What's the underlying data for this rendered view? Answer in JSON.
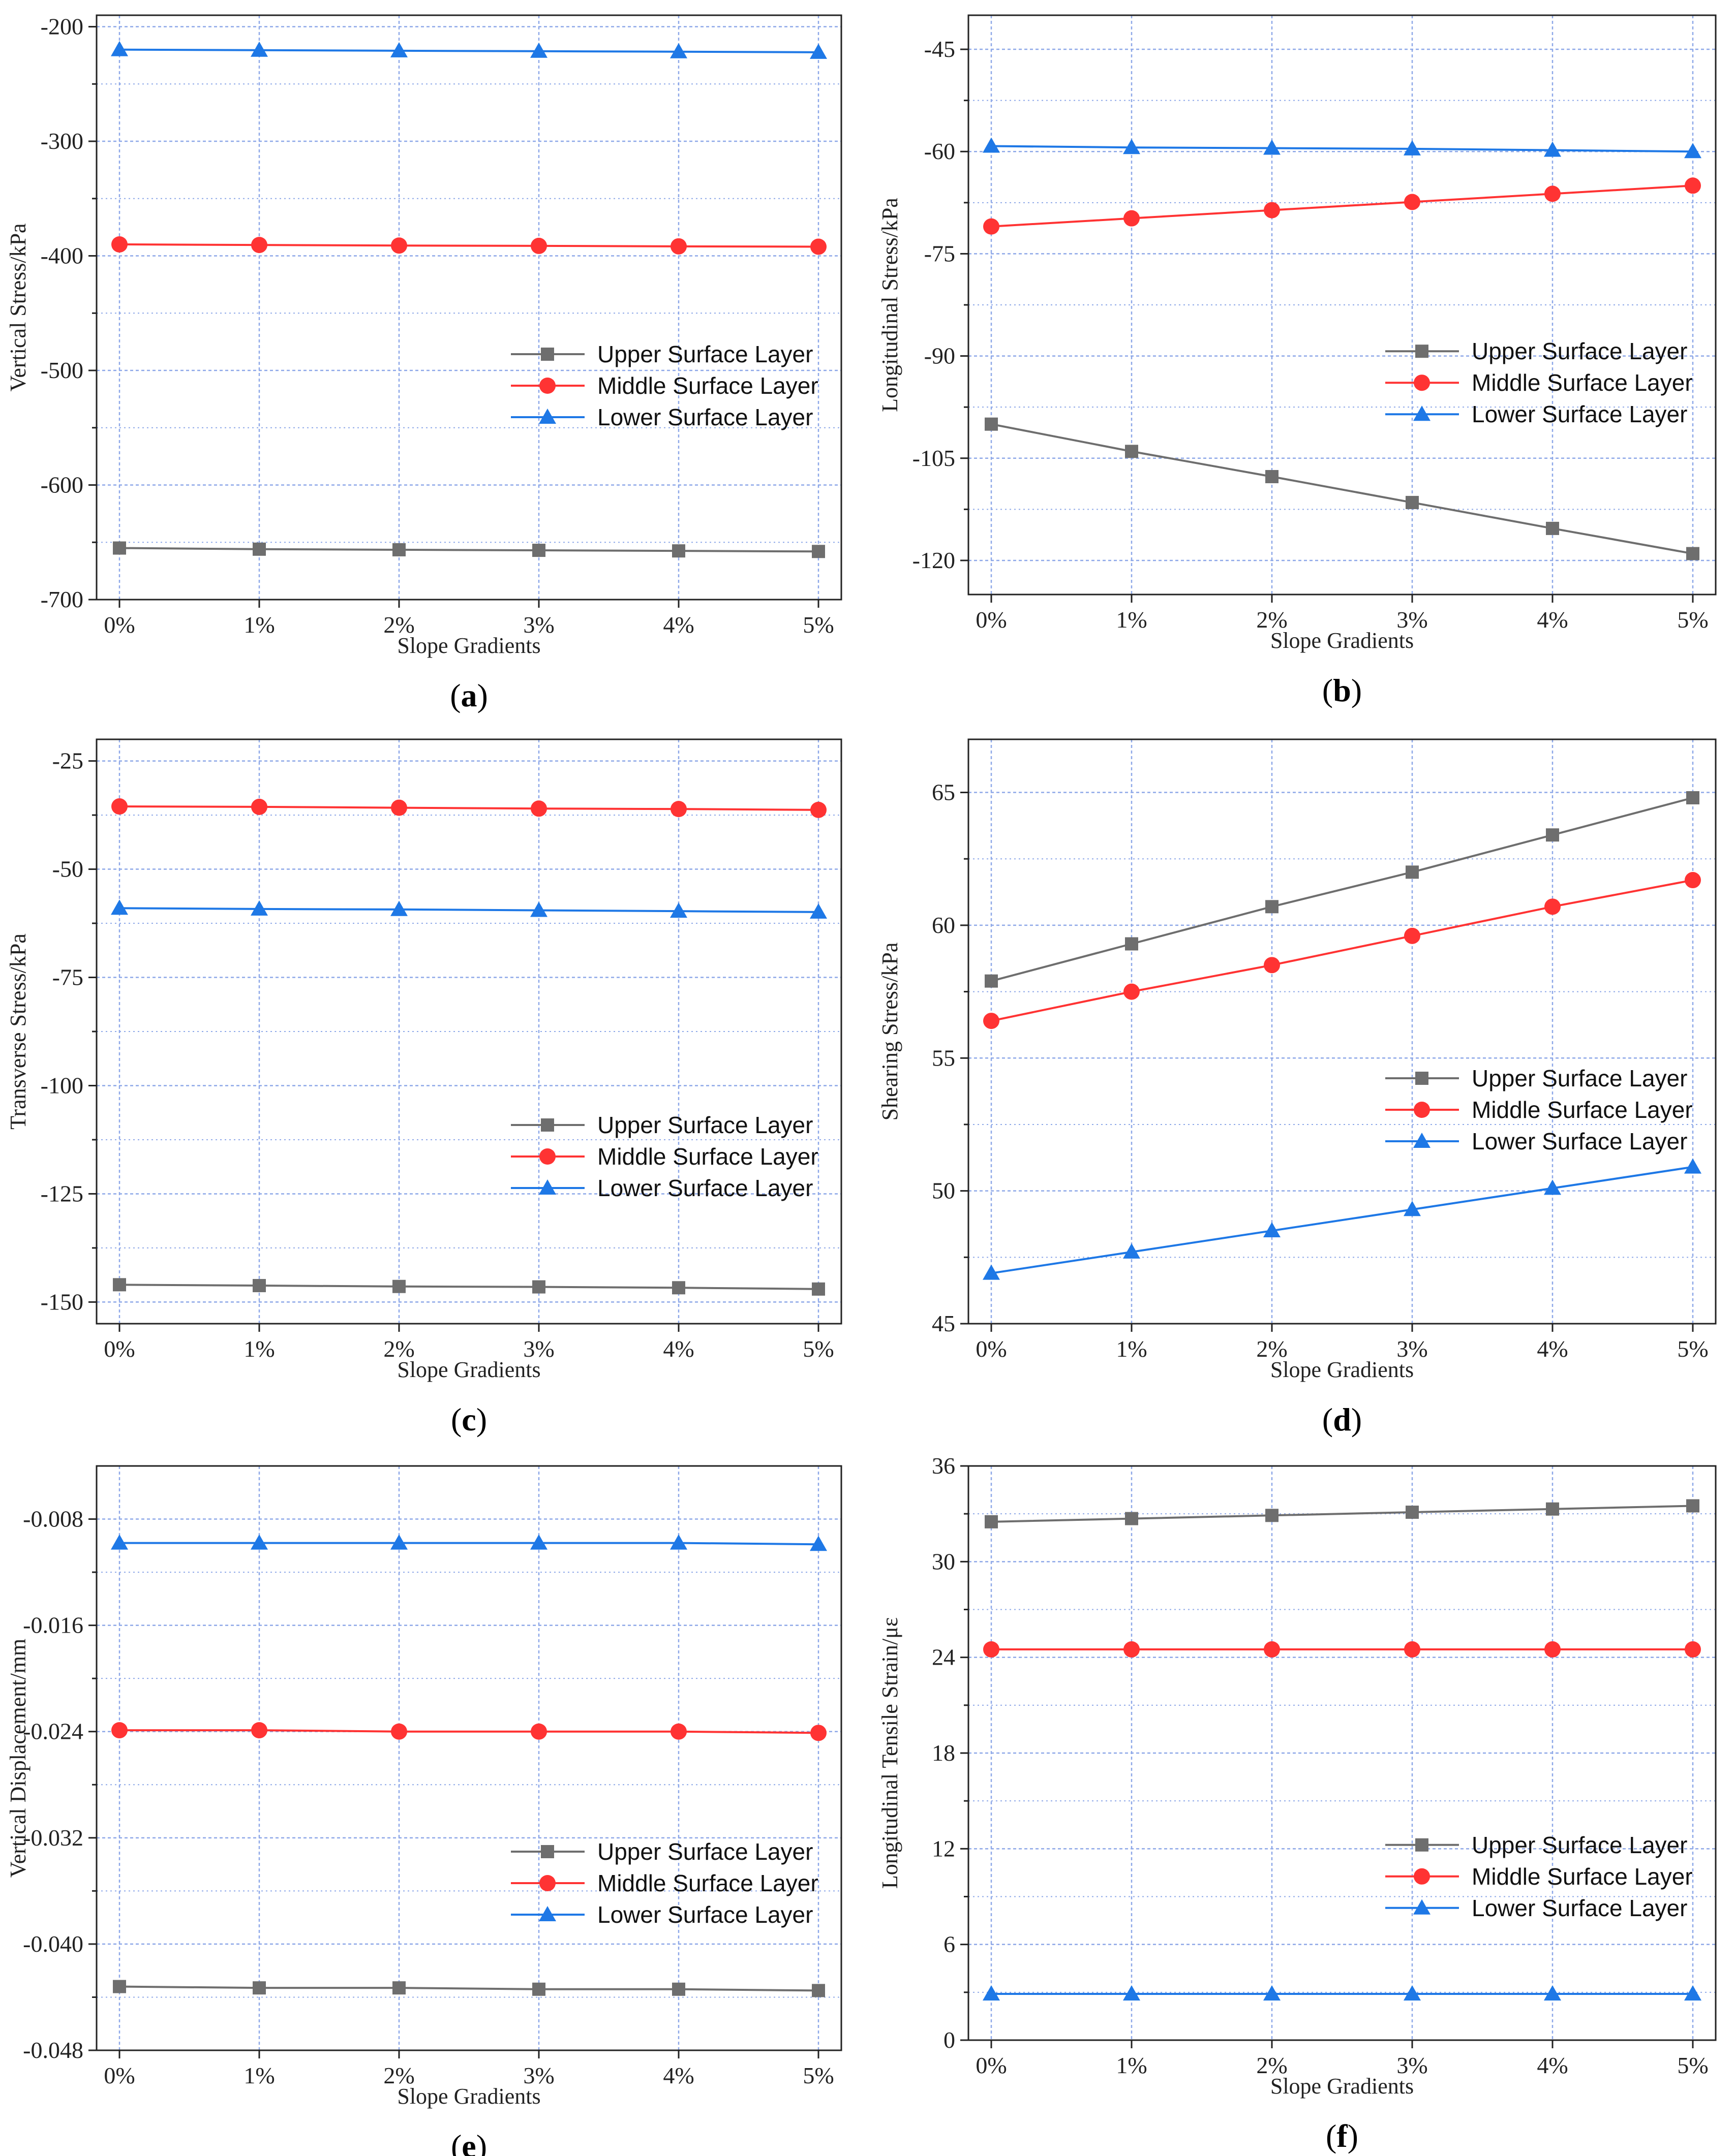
{
  "colors": {
    "upper": "#6e6e6e",
    "middle": "#ff3333",
    "lower": "#1e78e6",
    "grid": "#8ea8e8"
  },
  "chart_data": [
    {
      "panel": "a",
      "type": "line",
      "categories": [
        "0%",
        "1%",
        "2%",
        "3%",
        "4%",
        "5%"
      ],
      "xlabel": "Slope Gradients",
      "ylabel": "Vertical Stress/kPa",
      "ylim": [
        -700,
        -190
      ],
      "yticks": [
        -700,
        -600,
        -500,
        -400,
        -300,
        -200
      ],
      "ytick_labels": [
        "-700",
        "-600",
        "-500",
        "-400",
        "-300",
        "-200"
      ],
      "legend": {
        "position": "right-middle"
      },
      "caption_letter": "a",
      "series": [
        {
          "name": "Upper  Surface Layer",
          "key": "upper",
          "marker": "square",
          "values": [
            -655,
            -656,
            -656.5,
            -657,
            -657.5,
            -658
          ]
        },
        {
          "name": "Middle Surface Layer",
          "key": "middle",
          "marker": "circle",
          "values": [
            -390,
            -390.5,
            -391,
            -391.3,
            -391.7,
            -392
          ]
        },
        {
          "name": "Lower  Surface Layer",
          "key": "lower",
          "marker": "triangle",
          "values": [
            -220,
            -220.5,
            -221,
            -221.4,
            -221.8,
            -222.3
          ]
        }
      ]
    },
    {
      "panel": "b",
      "type": "line",
      "categories": [
        "0%",
        "1%",
        "2%",
        "3%",
        "4%",
        "5%"
      ],
      "xlabel": "Slope Gradients",
      "ylabel": "Longitudinal Stress/kPa",
      "ylim": [
        -125,
        -40
      ],
      "yticks": [
        -120,
        -105,
        -90,
        -75,
        -60,
        -45
      ],
      "ytick_labels": [
        "-120",
        "-105",
        "-90",
        "-75",
        "-60",
        "-45"
      ],
      "legend": {
        "position": "right-middle"
      },
      "caption_letter": "b",
      "series": [
        {
          "name": "Upper  Surface Layer",
          "key": "upper",
          "marker": "square",
          "values": [
            -100,
            -104,
            -107.7,
            -111.5,
            -115.3,
            -119
          ]
        },
        {
          "name": "Middle Surface Layer",
          "key": "middle",
          "marker": "circle",
          "values": [
            -71,
            -69.8,
            -68.6,
            -67.4,
            -66.2,
            -65
          ]
        },
        {
          "name": "Lower  Surface Layer",
          "key": "lower",
          "marker": "triangle",
          "values": [
            -59.2,
            -59.4,
            -59.5,
            -59.6,
            -59.8,
            -60
          ]
        }
      ]
    },
    {
      "panel": "c",
      "type": "line",
      "categories": [
        "0%",
        "1%",
        "2%",
        "3%",
        "4%",
        "5%"
      ],
      "xlabel": "Slope Gradients",
      "ylabel": "Transverse Stress/kPa",
      "ylim": [
        -155,
        -20
      ],
      "yticks": [
        -150,
        -125,
        -100,
        -75,
        -50,
        -25
      ],
      "ytick_labels": [
        "-150",
        "-125",
        "-100",
        "-75",
        "-50",
        "-25"
      ],
      "legend": {
        "position": "right-lower"
      },
      "caption_letter": "c",
      "series": [
        {
          "name": "Upper  Surface Layer",
          "key": "upper",
          "marker": "square",
          "values": [
            -146,
            -146.2,
            -146.4,
            -146.5,
            -146.7,
            -147
          ]
        },
        {
          "name": "Middle Surface Layer",
          "key": "middle",
          "marker": "circle",
          "values": [
            -35.5,
            -35.6,
            -35.8,
            -36,
            -36.1,
            -36.3
          ]
        },
        {
          "name": "Lower  Surface Layer",
          "key": "lower",
          "marker": "triangle",
          "values": [
            -59,
            -59.2,
            -59.3,
            -59.5,
            -59.7,
            -59.9
          ]
        }
      ]
    },
    {
      "panel": "d",
      "type": "line",
      "categories": [
        "0%",
        "1%",
        "2%",
        "3%",
        "4%",
        "5%"
      ],
      "xlabel": "Slope Gradients",
      "ylabel": "Shearing Stress/kPa",
      "ylim": [
        45,
        67
      ],
      "yticks": [
        45,
        50,
        55,
        60,
        65
      ],
      "ytick_labels": [
        "45",
        "50",
        "55",
        "60",
        "65"
      ],
      "legend": {
        "position": "right-middle"
      },
      "caption_letter": "d",
      "series": [
        {
          "name": "Upper  Surface Layer",
          "key": "upper",
          "marker": "square",
          "values": [
            57.9,
            59.3,
            60.7,
            62.0,
            63.4,
            64.8
          ]
        },
        {
          "name": "Middle Surface Layer",
          "key": "middle",
          "marker": "circle",
          "values": [
            56.4,
            57.5,
            58.5,
            59.6,
            60.7,
            61.7
          ]
        },
        {
          "name": "Lower  Surface Layer",
          "key": "lower",
          "marker": "triangle",
          "values": [
            46.9,
            47.7,
            48.5,
            49.3,
            50.1,
            50.9
          ]
        }
      ]
    },
    {
      "panel": "e",
      "type": "line",
      "categories": [
        "0%",
        "1%",
        "2%",
        "3%",
        "4%",
        "5%"
      ],
      "xlabel": "Slope Gradients",
      "ylabel": "Vertical Displacement/mm",
      "ylim": [
        -0.048,
        -0.004
      ],
      "yticks": [
        -0.048,
        -0.04,
        -0.032,
        -0.024,
        -0.016,
        -0.008
      ],
      "ytick_labels": [
        "-0.048",
        "-0.040",
        "-0.032",
        "-0.024",
        "-0.016",
        "-0.008"
      ],
      "legend": {
        "position": "right-lower"
      },
      "caption_letter": "e",
      "series": [
        {
          "name": "Upper  Surface Layer",
          "key": "upper",
          "marker": "square",
          "values": [
            -0.0432,
            -0.0433,
            -0.0433,
            -0.0434,
            -0.0434,
            -0.0435
          ]
        },
        {
          "name": "Middle Surface Layer",
          "key": "middle",
          "marker": "circle",
          "values": [
            -0.0239,
            -0.0239,
            -0.024,
            -0.024,
            -0.024,
            -0.0241
          ]
        },
        {
          "name": "Lower  Surface Layer",
          "key": "lower",
          "marker": "triangle",
          "values": [
            -0.0098,
            -0.0098,
            -0.0098,
            -0.0098,
            -0.0098,
            -0.0099
          ]
        }
      ]
    },
    {
      "panel": "f",
      "type": "line",
      "categories": [
        "0%",
        "1%",
        "2%",
        "3%",
        "4%",
        "5%"
      ],
      "xlabel": "Slope Gradients",
      "ylabel": "Longitudinal Tensile Strain/με",
      "ylim": [
        0,
        36
      ],
      "yticks": [
        0,
        6,
        12,
        18,
        24,
        30,
        36
      ],
      "ytick_labels": [
        "0",
        "6",
        "12",
        "18",
        "24",
        "30",
        "36"
      ],
      "legend": {
        "position": "right-lower"
      },
      "caption_letter": "f",
      "series": [
        {
          "name": "Upper  Surface Layer",
          "key": "upper",
          "marker": "square",
          "values": [
            32.5,
            32.7,
            32.9,
            33.1,
            33.3,
            33.5
          ]
        },
        {
          "name": "Middle Surface Layer",
          "key": "middle",
          "marker": "circle",
          "values": [
            24.5,
            24.5,
            24.5,
            24.5,
            24.5,
            24.5
          ]
        },
        {
          "name": "Lower  Surface Layer",
          "key": "lower",
          "marker": "triangle",
          "values": [
            2.9,
            2.9,
            2.9,
            2.9,
            2.9,
            2.9
          ]
        }
      ]
    }
  ]
}
